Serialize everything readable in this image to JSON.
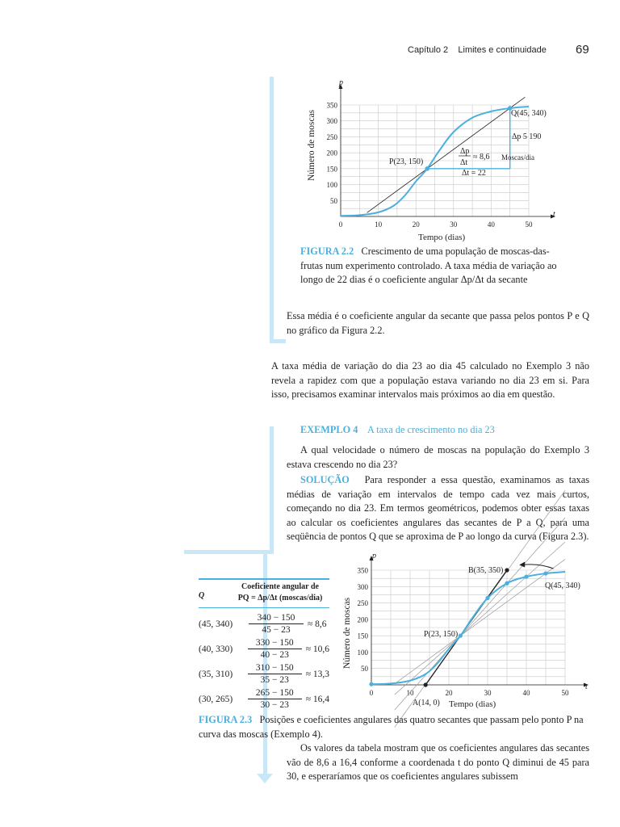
{
  "header": {
    "chapter": "Capítulo 2",
    "section": "Limites e continuidade",
    "page": "69"
  },
  "fig22": {
    "ylabel": "Número de moscas",
    "xlabel": "Tempo (dias)",
    "p_axis": "p",
    "t_axis": "t",
    "yticks": [
      "50",
      "100",
      "150",
      "200",
      "250",
      "300",
      "350"
    ],
    "xticks": [
      "0",
      "10",
      "20",
      "30",
      "40",
      "50"
    ],
    "P_label": "P(23, 150)",
    "Q_label": "Q(45, 340)",
    "dp_label": "Δp 5 190",
    "frac_num": "Δp",
    "frac_den": "Δt",
    "approx": "≈ 8,6",
    "units": "Moscas/dia",
    "dt_label": "Δt = 22",
    "caption_label": "FIGURA 2.2",
    "caption_text": "Crescimento de uma população de moscas-das-frutas num experimento controlado. A taxa média de variação ao longo de 22 dias é o coeficiente angular Δp/Δt da secante"
  },
  "chart_data": [
    {
      "type": "line",
      "xlabel": "Tempo (dias)",
      "ylabel": "Número de moscas",
      "xlim": [
        0,
        50
      ],
      "ylim": [
        0,
        350
      ],
      "series": [
        {
          "values": [
            [
              0,
              2
            ],
            [
              5,
              4
            ],
            [
              10,
              13
            ],
            [
              14,
              33
            ],
            [
              17,
              65
            ],
            [
              20,
              110
            ],
            [
              23,
              150
            ],
            [
              26,
              203
            ],
            [
              30,
              265
            ],
            [
              35,
              310
            ],
            [
              40,
              330
            ],
            [
              45,
              340
            ],
            [
              50,
              345
            ]
          ]
        }
      ],
      "points": [
        {
          "label": "P(23, 150)",
          "x": 23,
          "y": 150
        },
        {
          "label": "Q(45, 340)",
          "x": 45,
          "y": 340
        }
      ]
    },
    {
      "type": "line",
      "xlabel": "Tempo (dias)",
      "ylabel": "Número de moscas",
      "xlim": [
        0,
        50
      ],
      "ylim": [
        0,
        350
      ],
      "series": [
        {
          "values": [
            [
              0,
              2
            ],
            [
              5,
              4
            ],
            [
              10,
              13
            ],
            [
              14,
              33
            ],
            [
              17,
              65
            ],
            [
              20,
              110
            ],
            [
              23,
              150
            ],
            [
              26,
              203
            ],
            [
              30,
              265
            ],
            [
              35,
              310
            ],
            [
              40,
              330
            ],
            [
              45,
              340
            ],
            [
              50,
              345
            ]
          ]
        }
      ],
      "points": [
        {
          "label": "P(23, 150)",
          "x": 23,
          "y": 150
        },
        {
          "label": "Q(45, 340)",
          "x": 45,
          "y": 340
        },
        {
          "label": "B(35, 350)",
          "x": 35,
          "y": 350
        },
        {
          "label": "A(14, 0)",
          "x": 14,
          "y": 0
        },
        {
          "x": 40,
          "y": 330
        },
        {
          "x": 35,
          "y": 310
        },
        {
          "x": 30,
          "y": 265
        }
      ]
    }
  ],
  "para1": "Essa média é o coeficiente angular da secante que passa pelos pontos P e Q no gráfico da Figura 2.2.",
  "para2": "A taxa média de variação do dia 23 ao dia 45 calculado no Exemplo 3 não revela a rapidez com que a população estava variando no dia 23 em si. Para isso, precisamos examinar intervalos mais próximos ao dia em questão.",
  "example": {
    "label": "EXEMPLO 4",
    "title": "A taxa de crescimento no dia 23",
    "question": "A qual velocidade o número de moscas na população do Exemplo 3 estava crescendo no dia 23?",
    "solution_label": "SOLUÇÃO",
    "solution_text": "Para responder a essa questão, examinamos as taxas médias de variação em intervalos de tempo cada vez mais curtos, começando no dia 23. Em termos geométricos, podemos obter essas taxas ao calcular os coeficientes angulares das secantes de P a Q, para uma seqüência de pontos Q que se aproxima de P ao longo da curva (Figura 2.3)."
  },
  "table": {
    "col1": "Q",
    "col2_line1": "Coeficiente angular de",
    "col2_line2": "PQ = Δp/Δt (moscas/dia)",
    "rows": [
      {
        "q": "(45, 340)",
        "num": "340 − 150",
        "den": "45 − 23",
        "val": "≈ 8,6"
      },
      {
        "q": "(40, 330)",
        "num": "330 − 150",
        "den": "40 − 23",
        "val": "≈ 10,6"
      },
      {
        "q": "(35, 310)",
        "num": "310 − 150",
        "den": "35 − 23",
        "val": "≈ 13,3"
      },
      {
        "q": "(30, 265)",
        "num": "265 − 150",
        "den": "30 − 23",
        "val": "≈ 16,4"
      }
    ]
  },
  "fig23": {
    "ylabel": "Número de moscas",
    "xlabel": "Tempo (dias)",
    "p_axis": "p",
    "t_axis": "t",
    "yticks": [
      "50",
      "100",
      "150",
      "200",
      "250",
      "300",
      "350"
    ],
    "xticks": [
      "0",
      "10",
      "20",
      "30",
      "40",
      "50"
    ],
    "B_label": "B(35, 350)",
    "Q_label": "Q(45, 340)",
    "P_label": "P(23, 150)",
    "A_label": "A(14, 0)",
    "caption_label": "FIGURA 2.3",
    "caption_text": "Posições e coeficientes angulares das quatro secantes que passam pelo ponto P na curva das moscas (Exemplo 4)."
  },
  "para3": "Os valores da tabela mostram que os coeficientes angulares das secantes vão de 8,6 a 16,4 conforme a coordenada t do ponto Q diminui de 45 para 30, e esperaríamos que os coeficientes angulares subissem",
  "colors": {
    "accent": "#4ab0dd",
    "bar": "#c9e7f6",
    "text": "#231f20"
  }
}
